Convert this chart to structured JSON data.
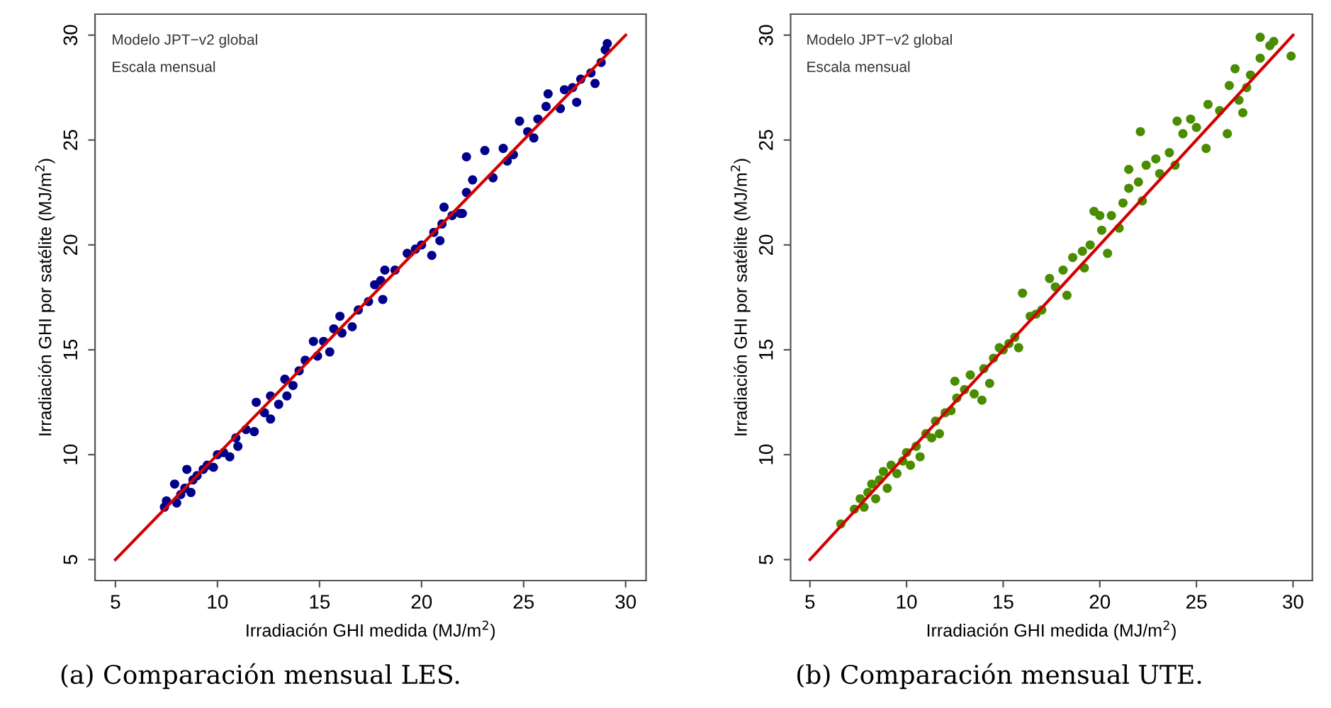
{
  "chart_data": [
    {
      "type": "scatter",
      "xlabel": "Irradiación GHI medida (MJ/m$^{2}$)",
      "ylabel": "Irradiación GHI por satélite (MJ/m$^{2}$)",
      "annotations": [
        "Modelo JPT−v2 global",
        "Escala mensual",
        "(a) Comparación mensual LES."
      ],
      "xlim": [
        4,
        31
      ],
      "ylim": [
        4,
        31
      ],
      "xticks": [
        5,
        10,
        15,
        20,
        25,
        30
      ],
      "yticks": [
        5,
        10,
        15,
        20,
        25,
        30
      ],
      "grid": false,
      "legend": false,
      "marker": "circle",
      "series": [
        {
          "color": "#00008b",
          "x": [
            7.4,
            7.5,
            7.9,
            8.0,
            8.2,
            8.5,
            8.4,
            8.7,
            8.8,
            9.0,
            9.3,
            9.5,
            9.8,
            10.0,
            10.3,
            10.6,
            10.9,
            11.0,
            11.4,
            11.8,
            11.9,
            12.3,
            12.6,
            12.6,
            13.0,
            13.3,
            13.4,
            13.7,
            14.0,
            14.3,
            14.7,
            14.9,
            15.2,
            15.5,
            15.7,
            16.0,
            16.1,
            16.6,
            16.9,
            17.4,
            17.7,
            18.0,
            18.1,
            18.2,
            18.7,
            19.3,
            19.7,
            20.0,
            20.5,
            20.6,
            20.9,
            21.0,
            21.1,
            21.5,
            21.9,
            22.0,
            22.2,
            22.2,
            22.5,
            23.1,
            23.5,
            24.0,
            24.2,
            24.5,
            24.8,
            25.2,
            25.5,
            25.7,
            26.1,
            26.2,
            26.8,
            27.0,
            27.4,
            27.6,
            27.8,
            28.3,
            28.5,
            28.8,
            29.0,
            29.1
          ],
          "values": [
            7.5,
            7.8,
            8.6,
            7.7,
            8.1,
            9.3,
            8.4,
            8.2,
            8.8,
            9.0,
            9.3,
            9.5,
            9.4,
            10.0,
            10.1,
            9.9,
            10.8,
            10.4,
            11.2,
            11.1,
            12.5,
            12.0,
            12.8,
            11.7,
            12.4,
            13.6,
            12.8,
            13.3,
            14.0,
            14.5,
            15.4,
            14.7,
            15.4,
            14.9,
            16.0,
            16.6,
            15.8,
            16.1,
            16.9,
            17.3,
            18.1,
            18.3,
            17.4,
            18.8,
            18.8,
            19.6,
            19.8,
            20.0,
            19.5,
            20.6,
            20.2,
            21.0,
            21.8,
            21.4,
            21.5,
            21.5,
            22.5,
            24.2,
            23.1,
            24.5,
            23.2,
            24.6,
            24.0,
            24.3,
            25.9,
            25.4,
            25.1,
            26.0,
            26.6,
            27.2,
            26.5,
            27.4,
            27.5,
            26.8,
            27.9,
            28.2,
            27.7,
            28.7,
            29.3,
            29.6
          ]
        },
        {
          "type": "line",
          "color": "#d40000",
          "marker": "none",
          "x": [
            5,
            30
          ],
          "values": [
            5,
            30
          ]
        }
      ]
    },
    {
      "type": "scatter",
      "xlabel": "Irradiación GHI medida (MJ/m$^{2}$)",
      "ylabel": "Irradiación GHI por satélite (MJ/m$^{2}$)",
      "annotations": [
        "Modelo JPT−v2 global",
        "Escala mensual",
        "(b) Comparación mensual UTE."
      ],
      "xlim": [
        4,
        31
      ],
      "ylim": [
        4,
        31
      ],
      "xticks": [
        5,
        10,
        15,
        20,
        25,
        30
      ],
      "yticks": [
        5,
        10,
        15,
        20,
        25,
        30
      ],
      "grid": false,
      "legend": false,
      "marker": "circle",
      "series": [
        {
          "color": "#4a8c00",
          "x": [
            6.6,
            7.3,
            7.6,
            7.8,
            8.0,
            8.2,
            8.4,
            8.6,
            8.8,
            9.0,
            9.2,
            9.5,
            9.8,
            10.0,
            10.2,
            10.5,
            10.7,
            11.0,
            11.3,
            11.5,
            11.7,
            12.0,
            12.3,
            12.5,
            12.6,
            13.0,
            13.3,
            13.5,
            13.9,
            14.0,
            14.3,
            14.5,
            14.8,
            15.0,
            15.3,
            15.6,
            15.8,
            16.0,
            16.4,
            16.7,
            17.0,
            17.4,
            17.7,
            18.1,
            18.3,
            18.6,
            19.1,
            19.2,
            19.5,
            19.7,
            20.0,
            20.1,
            20.4,
            20.6,
            21.0,
            21.2,
            21.5,
            21.5,
            22.0,
            22.1,
            22.2,
            22.4,
            22.9,
            23.1,
            23.6,
            23.9,
            24.0,
            24.3,
            24.7,
            25.0,
            25.5,
            25.6,
            26.2,
            26.6,
            26.7,
            27.0,
            27.2,
            27.4,
            27.6,
            27.8,
            28.3,
            28.3,
            28.8,
            29.0,
            29.9
          ],
          "values": [
            6.7,
            7.4,
            7.9,
            7.5,
            8.2,
            8.6,
            7.9,
            8.8,
            9.2,
            8.4,
            9.5,
            9.1,
            9.7,
            10.1,
            9.5,
            10.4,
            9.9,
            11.0,
            10.8,
            11.6,
            11.0,
            12.0,
            12.1,
            13.5,
            12.7,
            13.1,
            13.8,
            12.9,
            12.6,
            14.1,
            13.4,
            14.6,
            15.1,
            15.0,
            15.3,
            15.6,
            15.1,
            17.7,
            16.6,
            16.7,
            16.9,
            18.4,
            18.0,
            18.8,
            17.6,
            19.4,
            19.7,
            18.9,
            20.0,
            21.6,
            21.4,
            20.7,
            19.6,
            21.4,
            20.8,
            22.0,
            23.6,
            22.7,
            23.0,
            25.4,
            22.1,
            23.8,
            24.1,
            23.4,
            24.4,
            23.8,
            25.9,
            25.3,
            26.0,
            25.6,
            24.6,
            26.7,
            26.4,
            25.3,
            27.6,
            28.4,
            26.9,
            26.3,
            27.5,
            28.1,
            28.9,
            29.9,
            29.5,
            29.7,
            29.0
          ]
        },
        {
          "type": "line",
          "color": "#d40000",
          "marker": "none",
          "x": [
            5,
            30
          ],
          "values": [
            5,
            30
          ]
        }
      ]
    }
  ]
}
